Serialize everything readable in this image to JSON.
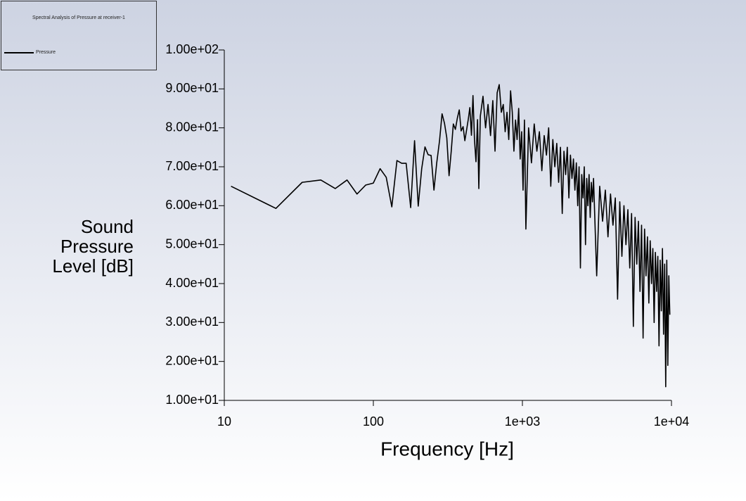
{
  "chart_data": {
    "type": "line",
    "legend_title": "Spectral Analysis of Pressure at receiver-1",
    "x_label": "Frequency [Hz]",
    "y_label": "Sound Pressure Level [dB]",
    "x_scale": "log",
    "xlim": [
      10,
      10000
    ],
    "xticks": [
      10,
      100,
      {
        "value": 1000,
        "label": "1e+03"
      },
      {
        "value": 10000,
        "label": "1e+04"
      }
    ],
    "ylim": [
      10,
      100
    ],
    "yticks": [
      {
        "value": 10,
        "label": "1.00e+01"
      },
      {
        "value": 20,
        "label": "2.00e+01"
      },
      {
        "value": 30,
        "label": "3.00e+01"
      },
      {
        "value": 40,
        "label": "4.00e+01"
      },
      {
        "value": 50,
        "label": "5.00e+01"
      },
      {
        "value": 60,
        "label": "6.00e+01"
      },
      {
        "value": 70,
        "label": "7.00e+01"
      },
      {
        "value": 80,
        "label": "8.00e+01"
      },
      {
        "value": 90,
        "label": "9.00e+01"
      },
      {
        "value": 100,
        "label": "1.00e+02"
      }
    ],
    "x": [
      11.1,
      22.2,
      33.3,
      44.4,
      55.5,
      66.6,
      77.7,
      88.8,
      99.9,
      111,
      122,
      133,
      144,
      155,
      166,
      178,
      189,
      200,
      211,
      222,
      233,
      244,
      255,
      266,
      278,
      289,
      300,
      311,
      322,
      333,
      344,
      355,
      366,
      377,
      388,
      400,
      411,
      422,
      433,
      444,
      455,
      466,
      477,
      488,
      500,
      510,
      522,
      544,
      566,
      588,
      611,
      633,
      655,
      677,
      699,
      722,
      744,
      766,
      788,
      810,
      833,
      855,
      877,
      899,
      921,
      944,
      966,
      988,
      1010,
      1032,
      1055,
      1100,
      1150,
      1200,
      1250,
      1300,
      1350,
      1400,
      1450,
      1500,
      1550,
      1600,
      1650,
      1700,
      1750,
      1800,
      1850,
      1900,
      1950,
      2000,
      2050,
      2100,
      2150,
      2200,
      2250,
      2300,
      2350,
      2400,
      2450,
      2500,
      2550,
      2600,
      2650,
      2700,
      2750,
      2800,
      2850,
      2900,
      2950,
      3000,
      3150,
      3300,
      3450,
      3600,
      3750,
      3900,
      4050,
      4200,
      4350,
      4500,
      4650,
      4800,
      4950,
      5100,
      5250,
      5400,
      5550,
      5700,
      5850,
      6000,
      6150,
      6300,
      6450,
      6600,
      6750,
      6900,
      7050,
      7200,
      7350,
      7500,
      7650,
      7800,
      7950,
      8100,
      8250,
      8400,
      8550,
      8700,
      8850,
      9000,
      9150,
      9300,
      9450,
      9600,
      9750
    ],
    "series": [
      {
        "name": "Pressure",
        "color": "#000000",
        "values": [
          65.0,
          59.3,
          66.0,
          66.6,
          64.4,
          66.6,
          63.0,
          65.3,
          65.8,
          69.5,
          67.3,
          59.7,
          71.6,
          70.9,
          70.9,
          59.5,
          76.7,
          59.9,
          69.5,
          75.1,
          73.1,
          72.9,
          64.0,
          70.9,
          76.7,
          83.6,
          81.2,
          77.4,
          67.7,
          74.0,
          81.0,
          79.6,
          82.5,
          84.6,
          79.2,
          80.3,
          76.7,
          79.4,
          82.1,
          85.2,
          78.1,
          88.3,
          76.9,
          71.3,
          82.1,
          64.4,
          83,
          88.1,
          80,
          86,
          78,
          87,
          74,
          89,
          91.1,
          84,
          86,
          79,
          84,
          77,
          89.5,
          84,
          74,
          82,
          77,
          85,
          72,
          79,
          64,
          82,
          54,
          80,
          71,
          81,
          74,
          79,
          69,
          78,
          73,
          80,
          65,
          77,
          70,
          76,
          66,
          75,
          58,
          74,
          68,
          75,
          62,
          73,
          67,
          72,
          64,
          71,
          60,
          70,
          44,
          68,
          62,
          70,
          50,
          67,
          60,
          68,
          57,
          66,
          61,
          67,
          42,
          65,
          56,
          64,
          52,
          63,
          55,
          62,
          36,
          61,
          47,
          60,
          50,
          59,
          44,
          58,
          29,
          57,
          45,
          56,
          38,
          55,
          26,
          54,
          42,
          52,
          35,
          51,
          40,
          49,
          30,
          48,
          38,
          47,
          24,
          46,
          33,
          49,
          27,
          45,
          13.5,
          46,
          19,
          42,
          32
        ]
      }
    ]
  }
}
